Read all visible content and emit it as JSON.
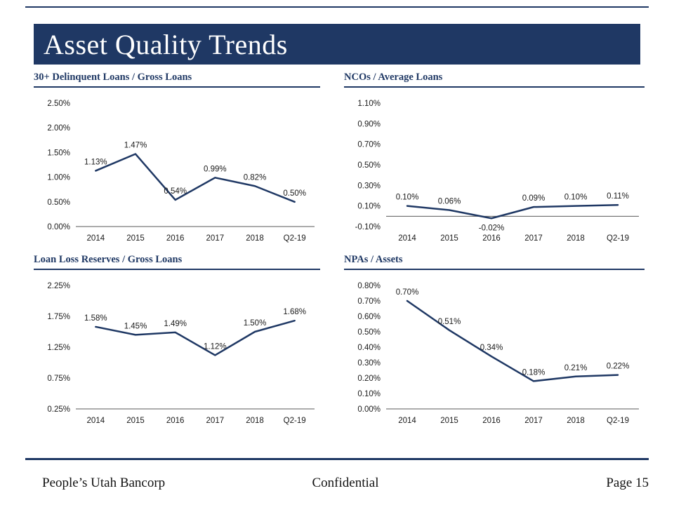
{
  "header": {
    "title": "Asset Quality Trends"
  },
  "theme": {
    "navy": "#1f3864",
    "line_color": "#1f3864",
    "axis_color": "#595959",
    "label_color": "#1a1a1a"
  },
  "chart_data": [
    {
      "type": "line",
      "title": "30+ Delinquent Loans / Gross Loans",
      "categories": [
        "2014",
        "2015",
        "2016",
        "2017",
        "2018",
        "Q2-19"
      ],
      "values": [
        1.13,
        1.47,
        0.54,
        0.99,
        0.82,
        0.5
      ],
      "point_labels": [
        "1.13%",
        "1.47%",
        "0.54%",
        "0.99%",
        "0.82%",
        "0.50%"
      ],
      "yticks": [
        "2.50%",
        "2.00%",
        "1.50%",
        "1.00%",
        "0.50%",
        "0.00%"
      ],
      "ymin": 0,
      "ymax": 2.5,
      "axis_at": 0,
      "grid": false,
      "legend": "none"
    },
    {
      "type": "line",
      "title": "NCOs / Average Loans",
      "categories": [
        "2014",
        "2015",
        "2016",
        "2017",
        "2018",
        "Q2-19"
      ],
      "values": [
        0.1,
        0.06,
        -0.02,
        0.09,
        0.1,
        0.11
      ],
      "point_labels": [
        "0.10%",
        "0.06%",
        "-0.02%",
        "0.09%",
        "0.10%",
        "0.11%"
      ],
      "yticks": [
        "1.10%",
        "0.90%",
        "0.70%",
        "0.50%",
        "0.30%",
        "0.10%",
        "-0.10%"
      ],
      "ymin": -0.1,
      "ymax": 1.1,
      "axis_at": 0,
      "grid": false,
      "legend": "none"
    },
    {
      "type": "line",
      "title": "Loan Loss Reserves / Gross Loans",
      "categories": [
        "2014",
        "2015",
        "2016",
        "2017",
        "2018",
        "Q2-19"
      ],
      "values": [
        1.58,
        1.45,
        1.49,
        1.12,
        1.5,
        1.68
      ],
      "point_labels": [
        "1.58%",
        "1.45%",
        "1.49%",
        "1.12%",
        "1.50%",
        "1.68%"
      ],
      "yticks": [
        "2.25%",
        "1.75%",
        "1.25%",
        "0.75%",
        "0.25%"
      ],
      "ymin": 0.25,
      "ymax": 2.25,
      "axis_at": 0.25,
      "grid": false,
      "legend": "none"
    },
    {
      "type": "line",
      "title": "NPAs / Assets",
      "categories": [
        "2014",
        "2015",
        "2016",
        "2017",
        "2018",
        "Q2-19"
      ],
      "values": [
        0.7,
        0.51,
        0.34,
        0.18,
        0.21,
        0.22
      ],
      "point_labels": [
        "0.70%",
        "0.51%",
        "0.34%",
        "0.18%",
        "0.21%",
        "0.22%"
      ],
      "yticks": [
        "0.80%",
        "0.70%",
        "0.60%",
        "0.50%",
        "0.40%",
        "0.30%",
        "0.20%",
        "0.10%",
        "0.00%"
      ],
      "ymin": 0,
      "ymax": 0.8,
      "axis_at": 0,
      "grid": false,
      "legend": "none"
    }
  ],
  "footer": {
    "left": "People’s Utah Bancorp",
    "center": "Confidential",
    "right": "Page 15"
  }
}
